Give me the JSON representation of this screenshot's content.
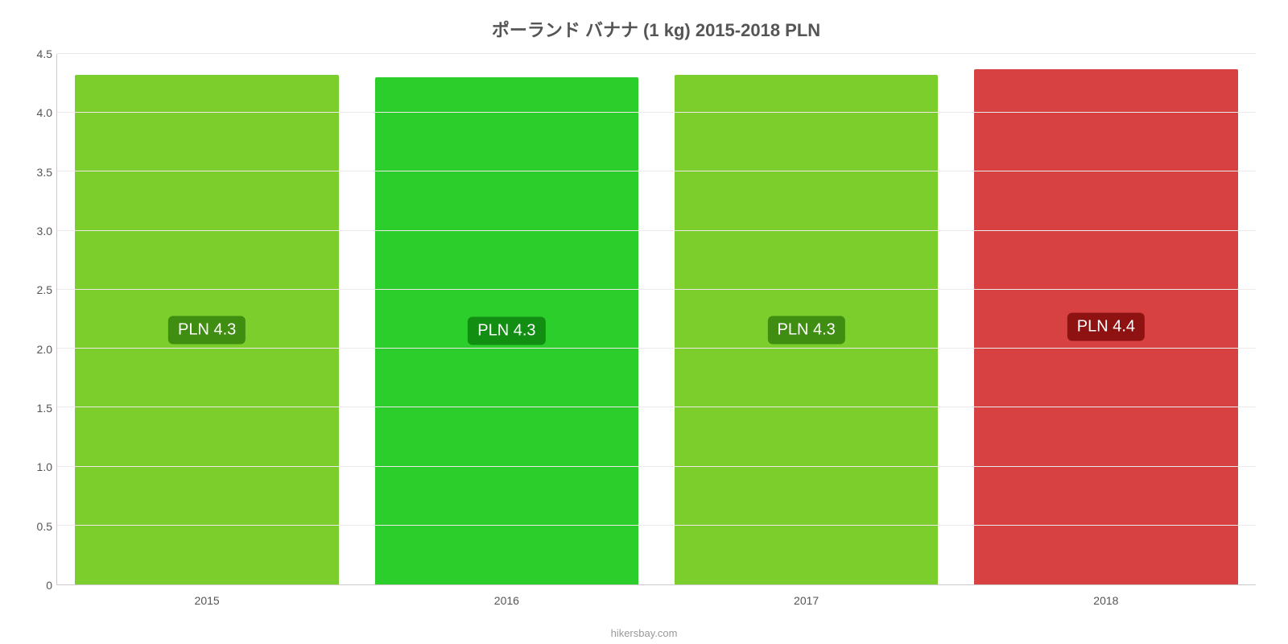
{
  "chart": {
    "type": "bar",
    "title": "ポーランド バナナ (1 kg) 2015-2018 PLN",
    "title_fontsize": 22,
    "title_color": "#555555",
    "background_color": "#ffffff",
    "grid_color": "#efeaea",
    "axis_color": "#d0c9c9",
    "label_color": "#555555",
    "label_fontsize": 14,
    "ylim": [
      0,
      4.5
    ],
    "ytick_step": 0.5,
    "yticks": [
      0,
      0.5,
      1.0,
      1.5,
      2.0,
      2.5,
      3.0,
      3.5,
      4.0,
      4.5
    ],
    "ytick_labels": [
      "0",
      "0.5",
      "1.0",
      "1.5",
      "2.0",
      "2.5",
      "3.0",
      "3.5",
      "4.0",
      "4.5"
    ],
    "categories": [
      "2015",
      "2016",
      "2017",
      "2018"
    ],
    "values": [
      4.32,
      4.3,
      4.32,
      4.37
    ],
    "value_labels": [
      "PLN 4.3",
      "PLN 4.3",
      "PLN 4.3",
      "PLN 4.4"
    ],
    "bar_colors": [
      "#7bce2c",
      "#2cce2c",
      "#7bce2c",
      "#d84141"
    ],
    "badge_colors": [
      "#3f8e12",
      "#128e12",
      "#3f8e12",
      "#8e1212"
    ],
    "badge_text_color": "#ffffff",
    "badge_fontsize": 20,
    "bar_width": 0.88,
    "attribution": "hikersbay.com",
    "attribution_color": "#999999"
  }
}
